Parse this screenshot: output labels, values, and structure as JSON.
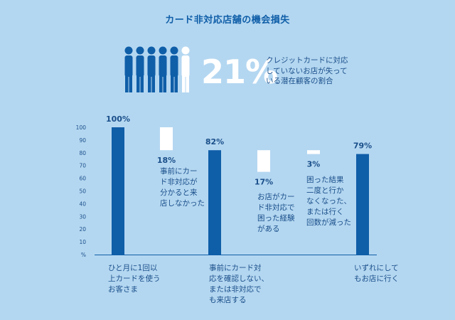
{
  "title": "カード非対応店舗の機会損失",
  "summary": {
    "percent": "21%",
    "description_lines": [
      "クレジットカードに対応",
      "していないお店が失って",
      "いる潜在顧客の割合"
    ]
  },
  "colors": {
    "background": "#b4d7f1",
    "bar": "#0f5ea8",
    "float_bar": "#ffffff",
    "text": "#1a4f8a"
  },
  "chart_data": {
    "type": "bar",
    "subtype": "waterfall",
    "y_unit_label": "%",
    "ylim": [
      0,
      100
    ],
    "yticks": [
      10,
      20,
      30,
      40,
      50,
      60,
      70,
      80,
      90,
      100
    ],
    "bars": [
      {
        "kind": "total",
        "start": 0,
        "end": 100,
        "label": "100%",
        "caption": [
          "ひと月に1回以",
          "上カードを使う",
          "お客さま"
        ]
      },
      {
        "kind": "decrease",
        "start": 82,
        "end": 100,
        "label": "18%",
        "caption": [
          "事前にカー",
          "ド非対応が",
          "分かると来",
          "店しなかった"
        ]
      },
      {
        "kind": "total",
        "start": 0,
        "end": 82,
        "label": "82%",
        "caption": [
          "事前にカード対",
          "応を確認しない、",
          "または非対応で",
          "も来店する"
        ]
      },
      {
        "kind": "decrease",
        "start": 65,
        "end": 82,
        "label": "17%",
        "caption": [
          "お店がカー",
          "ド非対応で",
          "困った経験",
          "がある"
        ]
      },
      {
        "kind": "decrease",
        "start": 79,
        "end": 82,
        "label": "3%",
        "caption": [
          "困った結果",
          "二度と行か",
          "なくなった、",
          "または行く",
          "回数が減った"
        ]
      },
      {
        "kind": "total",
        "start": 0,
        "end": 79,
        "label": "79%",
        "caption": [
          "いずれにして",
          "もお店に行く"
        ]
      }
    ]
  }
}
